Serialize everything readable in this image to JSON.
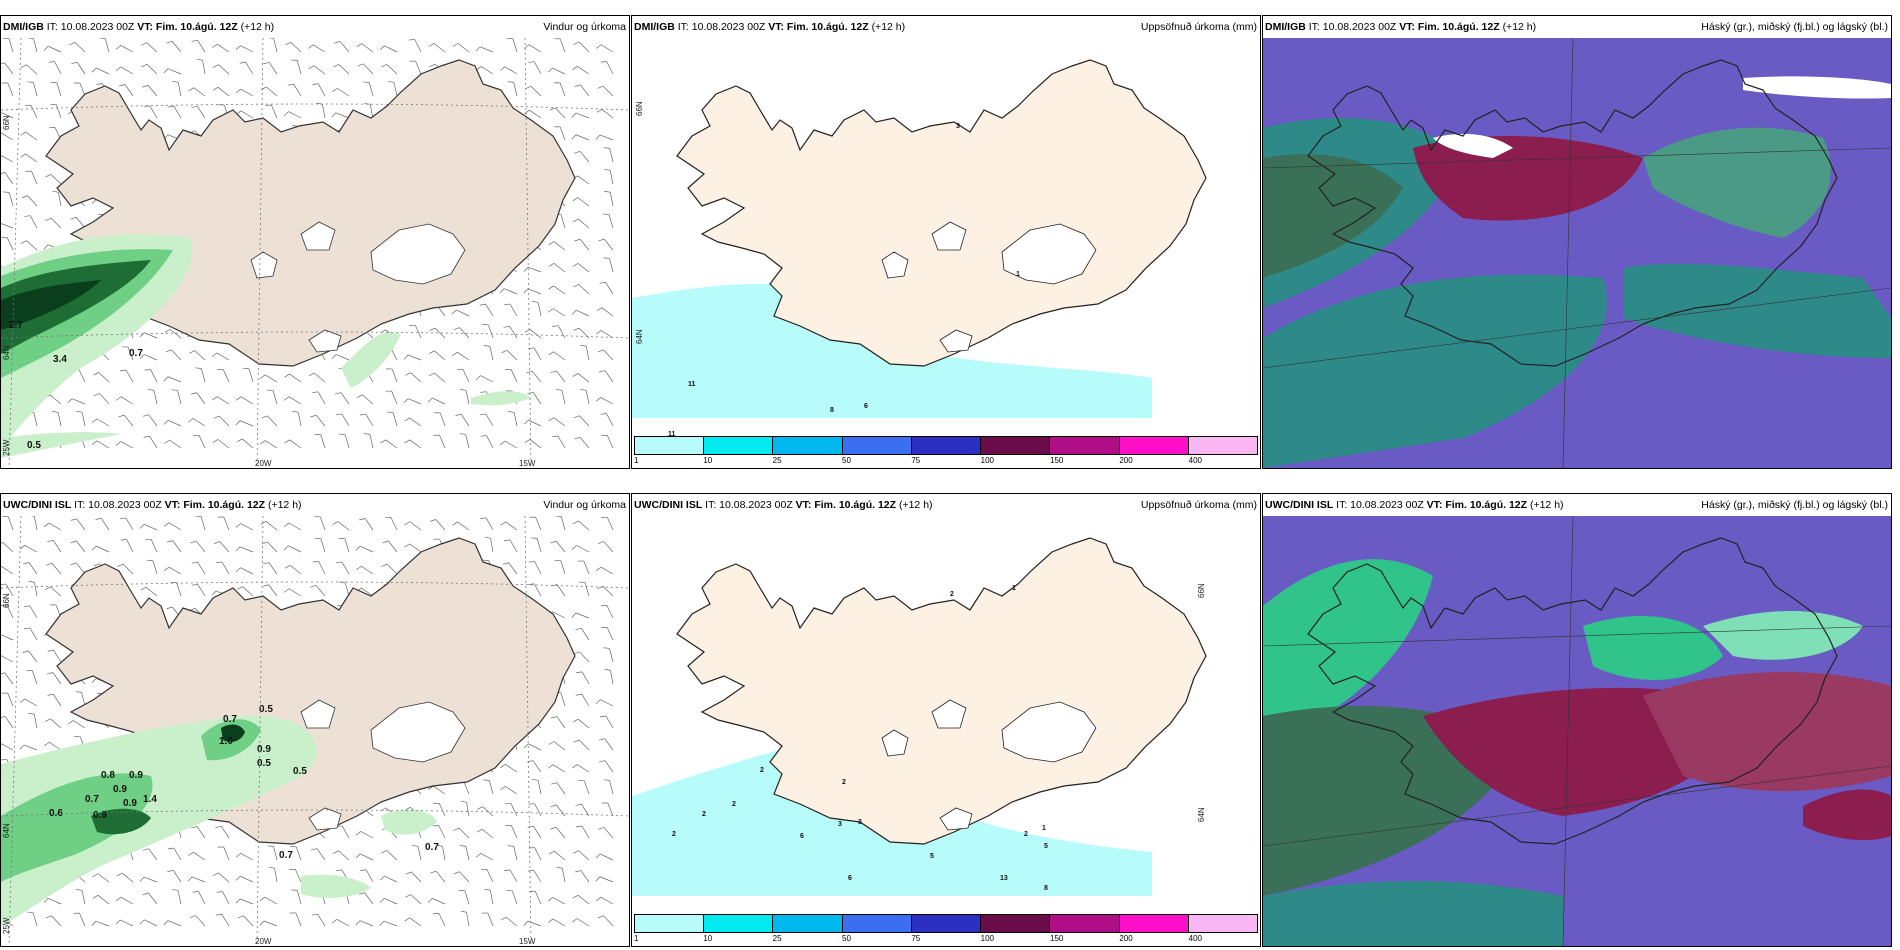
{
  "panels": [
    {
      "source": "DMI/IGB",
      "it": "IT: 10.08.2023 00Z",
      "vt": "VT: Fim. 10.ágú. 12Z",
      "lead": "(+12 h)",
      "title": "Vindur og úrkoma"
    },
    {
      "source": "DMI/IGB",
      "it": "IT: 10.08.2023 00Z",
      "vt": "VT: Fim. 10.ágú. 12Z",
      "lead": "(+12 h)",
      "title": "Uppsöfnuð úrkoma (mm)"
    },
    {
      "source": "DMI/IGB",
      "it": "IT: 10.08.2023 00Z",
      "vt": "VT: Fim. 10.ágú. 12Z",
      "lead": "(+12 h)",
      "title": "Háský (gr.), miðský (fj.bl.) og lágský (bl.)"
    },
    {
      "source": "UWC/DINI ISL",
      "it": "IT: 10.08.2023 00Z",
      "vt": "VT: Fim. 10.ágú. 12Z",
      "lead": "(+12 h)",
      "title": "Vindur og úrkoma"
    },
    {
      "source": "UWC/DINI ISL",
      "it": "IT: 10.08.2023 00Z",
      "vt": "VT: Fim. 10.ágú. 12Z",
      "lead": "(+12 h)",
      "title": "Uppsöfnuð úrkoma (mm)"
    },
    {
      "source": "UWC/DINI ISL",
      "it": "IT: 10.08.2023 00Z",
      "vt": "VT: Fim. 10.ágú. 12Z",
      "lead": "(+12 h)",
      "title": "Háský (gr.), miðský (fj.bl.) og lágský (bl.)"
    }
  ],
  "axes": {
    "lat_66": "66N",
    "lat_64": "64N",
    "lon_25": "25W",
    "lon_20": "20W",
    "lon_15": "15W"
  },
  "wind_labels_top": [
    "2.7",
    "3.4",
    "0.7",
    "0.5"
  ],
  "wind_labels_bottom": [
    "0.7",
    "0.5",
    "1.0",
    "0.9",
    "0.5",
    "0.5",
    "0.8",
    "0.9",
    "0.9",
    "0.9",
    "0.7",
    "1.4",
    "0.9",
    "0.6",
    "0.7",
    "0.7"
  ],
  "precip_labels_top": [
    "3",
    "1",
    "11",
    "11",
    "8",
    "6"
  ],
  "precip_labels_bottom": [
    "2",
    "1",
    "2",
    "2",
    "2",
    "2",
    "2",
    "6",
    "3",
    "3",
    "5",
    "13",
    "6",
    "2",
    "1",
    "5",
    "8"
  ],
  "colorbar": {
    "ticks": [
      "1",
      "10",
      "25",
      "50",
      "75",
      "100",
      "150",
      "200",
      "400"
    ],
    "colors": [
      "#b8fbfb",
      "#00eaf0",
      "#00b8ee",
      "#3b6ff2",
      "#2b2fc2",
      "#6a0d4a",
      "#b00e86",
      "#ff10c8",
      "#f8b7f2"
    ]
  },
  "colors": {
    "land": "#ece1d4",
    "land_precip": "#fdf1e4",
    "ocean_precip": "#b8fbfb",
    "rain_light": "#c9efcb",
    "rain_mid": "#6fcf84",
    "rain_dark": "#1d6d34",
    "rain_darkest": "#0a3e1c",
    "cloud_high": "#6a5ac4",
    "cloud_mid": "#2e8a88",
    "cloud_low": "#8b1d4f",
    "cloud_green": "#30c48a"
  }
}
